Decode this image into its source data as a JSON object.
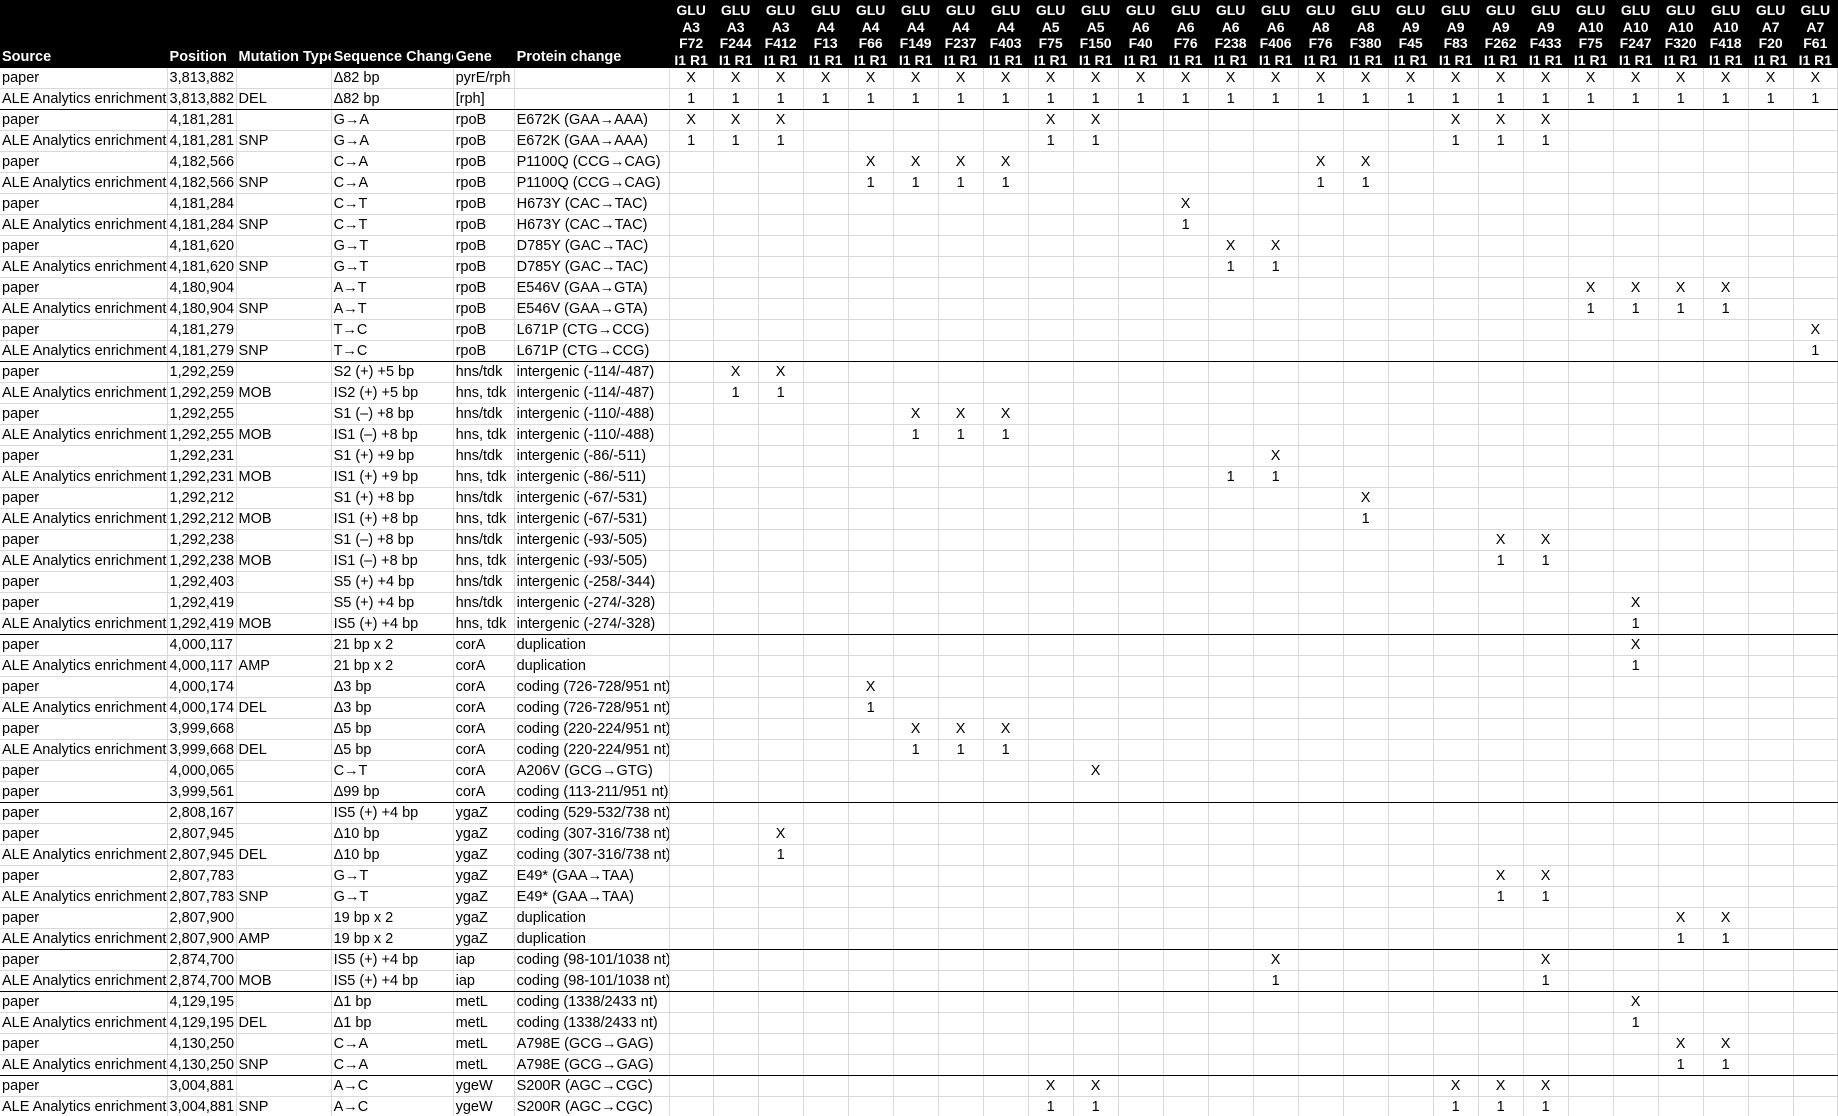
{
  "headers": [
    "Source",
    "Position",
    "Mutation Type",
    "Sequence Change",
    "Gene",
    "Protein change"
  ],
  "samples": [
    [
      "GLU",
      "A3",
      "F72",
      "I1 R1"
    ],
    [
      "GLU",
      "A3",
      "F244",
      "I1 R1"
    ],
    [
      "GLU",
      "A3",
      "F412",
      "I1 R1"
    ],
    [
      "GLU",
      "A4",
      "F13",
      "I1 R1"
    ],
    [
      "GLU",
      "A4",
      "F66",
      "I1 R1"
    ],
    [
      "GLU",
      "A4",
      "F149",
      "I1 R1"
    ],
    [
      "GLU",
      "A4",
      "F237",
      "I1 R1"
    ],
    [
      "GLU",
      "A4",
      "F403",
      "I1 R1"
    ],
    [
      "GLU",
      "A5",
      "F75",
      "I1 R1"
    ],
    [
      "GLU",
      "A5",
      "F150",
      "I1 R1"
    ],
    [
      "GLU",
      "A6",
      "F40",
      "I1 R1"
    ],
    [
      "GLU",
      "A6",
      "F76",
      "I1 R1"
    ],
    [
      "GLU",
      "A6",
      "F238",
      "I1 R1"
    ],
    [
      "GLU",
      "A6",
      "F406",
      "I1 R1"
    ],
    [
      "GLU",
      "A8",
      "F76",
      "I1 R1"
    ],
    [
      "GLU",
      "A8",
      "F380",
      "I1 R1"
    ],
    [
      "GLU",
      "A9",
      "F45",
      "I1 R1"
    ],
    [
      "GLU",
      "A9",
      "F83",
      "I1 R1"
    ],
    [
      "GLU",
      "A9",
      "F262",
      "I1 R1"
    ],
    [
      "GLU",
      "A9",
      "F433",
      "I1 R1"
    ],
    [
      "GLU",
      "A10",
      "F75",
      "I1 R1"
    ],
    [
      "GLU",
      "A10",
      "F247",
      "I1 R1"
    ],
    [
      "GLU",
      "A10",
      "F320",
      "I1 R1"
    ],
    [
      "GLU",
      "A10",
      "F418",
      "I1 R1"
    ],
    [
      "GLU",
      "A7",
      "F20",
      "I1 R1"
    ],
    [
      "GLU",
      "A7",
      "F61",
      "I1 R1"
    ]
  ],
  "rows": [
    {
      "src": "paper",
      "pos": "3,813,882",
      "type": "",
      "seq": "Δ82 bp",
      "gene": "pyrE/rph",
      "prot": "",
      "m": "XXXXXXXXXXXXXXXXXXXXXXXXXX"
    },
    {
      "src": "ALE Analytics enrichment",
      "pos": "3,813,882",
      "type": "DEL",
      "seq": "Δ82 bp",
      "gene": "[rph]",
      "prot": "",
      "m": "11111111111111111111111111",
      "sep": true
    },
    {
      "src": "paper",
      "pos": "4,181,281",
      "type": "",
      "seq": "G→A",
      "gene": "rpoB",
      "prot": "E672K (GAA→AAA)",
      "m": "XXX.....XX.......XXX......"
    },
    {
      "src": "ALE Analytics enrichment",
      "pos": "4,181,281",
      "type": "SNP",
      "seq": "G→A",
      "gene": "rpoB",
      "prot": "E672K (GAA→AAA)",
      "m": "111.....11.......111......"
    },
    {
      "src": "paper",
      "pos": "4,182,566",
      "type": "",
      "seq": "C→A",
      "gene": "rpoB",
      "prot": "P1100Q (CCG→CAG)",
      "m": "....XXXX......XX.........."
    },
    {
      "src": "ALE Analytics enrichment",
      "pos": "4,182,566",
      "type": "SNP",
      "seq": "C→A",
      "gene": "rpoB",
      "prot": "P1100Q (CCG→CAG)",
      "m": "....1111......11.........."
    },
    {
      "src": "paper",
      "pos": "4,181,284",
      "type": "",
      "seq": "C→T",
      "gene": "rpoB",
      "prot": "H673Y (CAC→TAC)",
      "m": "...........X.............."
    },
    {
      "src": "ALE Analytics enrichment",
      "pos": "4,181,284",
      "type": "SNP",
      "seq": "C→T",
      "gene": "rpoB",
      "prot": "H673Y (CAC→TAC)",
      "m": "...........1.............."
    },
    {
      "src": "paper",
      "pos": "4,181,620",
      "type": "",
      "seq": "G→T",
      "gene": "rpoB",
      "prot": "D785Y (GAC→TAC)",
      "m": "............XX............"
    },
    {
      "src": "ALE Analytics enrichment",
      "pos": "4,181,620",
      "type": "SNP",
      "seq": "G→T",
      "gene": "rpoB",
      "prot": "D785Y (GAC→TAC)",
      "m": "............11............"
    },
    {
      "src": "paper",
      "pos": "4,180,904",
      "type": "",
      "seq": "A→T",
      "gene": "rpoB",
      "prot": "E546V (GAA→GTA)",
      "m": "....................XXXX.."
    },
    {
      "src": "ALE Analytics enrichment",
      "pos": "4,180,904",
      "type": "SNP",
      "seq": "A→T",
      "gene": "rpoB",
      "prot": "E546V (GAA→GTA)",
      "m": "....................1111.."
    },
    {
      "src": "paper",
      "pos": "4,181,279",
      "type": "",
      "seq": "T→C",
      "gene": "rpoB",
      "prot": "L671P (CTG→CCG)",
      "m": ".........................X"
    },
    {
      "src": "ALE Analytics enrichment",
      "pos": "4,181,279",
      "type": "SNP",
      "seq": "T→C",
      "gene": "rpoB",
      "prot": "L671P (CTG→CCG)",
      "m": ".........................1",
      "sep": true
    },
    {
      "src": "paper",
      "pos": "1,292,259",
      "type": "",
      "seq": "S2 (+) +5 bp",
      "gene": "hns/tdk",
      "prot": "intergenic (-114/-487)",
      "m": ".XX......................."
    },
    {
      "src": "ALE Analytics enrichment",
      "pos": "1,292,259",
      "type": "MOB",
      "seq": "IS2 (+) +5 bp",
      "gene": "hns,  tdk",
      "prot": "intergenic (-114/-487)",
      "m": ".11......................."
    },
    {
      "src": "paper",
      "pos": "1,292,255",
      "type": "",
      "seq": "S1 (–) +8 bp",
      "gene": "hns/tdk",
      "prot": "intergenic (-110/-488)",
      "m": ".....XXX.................."
    },
    {
      "src": "ALE Analytics enrichment",
      "pos": "1,292,255",
      "type": "MOB",
      "seq": "IS1 (–) +8 bp",
      "gene": "hns,  tdk",
      "prot": "intergenic (-110/-488)",
      "m": ".....111.................."
    },
    {
      "src": "paper",
      "pos": "1,292,231",
      "type": "",
      "seq": "S1 (+) +9 bp",
      "gene": "hns/tdk",
      "prot": "intergenic (-86/-511)",
      "m": ".............X............"
    },
    {
      "src": "ALE Analytics enrichment",
      "pos": "1,292,231",
      "type": "MOB",
      "seq": "IS1 (+) +9 bp",
      "gene": "hns,  tdk",
      "prot": "intergenic (-86/-511)",
      "m": "............11............"
    },
    {
      "src": "paper",
      "pos": "1,292,212",
      "type": "",
      "seq": "S1 (+) +8 bp",
      "gene": "hns/tdk",
      "prot": "intergenic (-67/-531)",
      "m": "...............X.........."
    },
    {
      "src": "ALE Analytics enrichment",
      "pos": "1,292,212",
      "type": "MOB",
      "seq": "IS1 (+) +8 bp",
      "gene": "hns,  tdk",
      "prot": "intergenic (-67/-531)",
      "m": "...............1.........."
    },
    {
      "src": "paper",
      "pos": "1,292,238",
      "type": "",
      "seq": "S1 (–) +8 bp",
      "gene": "hns/tdk",
      "prot": "intergenic (-93/-505)",
      "m": "..................XX......"
    },
    {
      "src": "ALE Analytics enrichment",
      "pos": "1,292,238",
      "type": "MOB",
      "seq": "IS1 (–) +8 bp",
      "gene": "hns,  tdk",
      "prot": "intergenic (-93/-505)",
      "m": "..................11......"
    },
    {
      "src": "paper",
      "pos": "1,292,403",
      "type": "",
      "seq": "S5 (+) +4 bp",
      "gene": "hns/tdk",
      "prot": "intergenic (-258/-344)",
      "m": ".........................."
    },
    {
      "src": "paper",
      "pos": "1,292,419",
      "type": "",
      "seq": "S5 (+) +4 bp",
      "gene": "hns/tdk",
      "prot": "intergenic (-274/-328)",
      "m": ".....................X...."
    },
    {
      "src": "ALE Analytics enrichment",
      "pos": "1,292,419",
      "type": "MOB",
      "seq": "IS5 (+) +4 bp",
      "gene": "hns,  tdk",
      "prot": "intergenic (-274/-328)",
      "m": ".....................1....",
      "sep": true
    },
    {
      "src": "paper",
      "pos": "4,000,117",
      "type": "",
      "seq": "21 bp x 2",
      "gene": "corA",
      "prot": "duplication",
      "m": ".....................X...."
    },
    {
      "src": "ALE Analytics enrichment",
      "pos": "4,000,117",
      "type": "AMP",
      "seq": "21 bp x 2",
      "gene": "corA",
      "prot": "duplication",
      "m": ".....................1...."
    },
    {
      "src": "paper",
      "pos": "4,000,174",
      "type": "",
      "seq": "Δ3 bp",
      "gene": "corA",
      "prot": "coding (726-728/951 nt)",
      "m": "....X....................."
    },
    {
      "src": "ALE Analytics enrichment",
      "pos": "4,000,174",
      "type": "DEL",
      "seq": "Δ3 bp",
      "gene": "corA",
      "prot": "coding (726-728/951 nt)",
      "m": "....1....................."
    },
    {
      "src": "paper",
      "pos": "3,999,668",
      "type": "",
      "seq": "Δ5 bp",
      "gene": "corA",
      "prot": "coding (220-224/951 nt)",
      "m": ".....XXX.................."
    },
    {
      "src": "ALE Analytics enrichment",
      "pos": "3,999,668",
      "type": "DEL",
      "seq": "Δ5 bp",
      "gene": "corA",
      "prot": "coding (220-224/951 nt)",
      "m": ".....111.................."
    },
    {
      "src": "paper",
      "pos": "4,000,065",
      "type": "",
      "seq": "C→T",
      "gene": "corA",
      "prot": "A206V (GCG→GTG)",
      "m": ".........X................"
    },
    {
      "src": "paper",
      "pos": "3,999,561",
      "type": "",
      "seq": "Δ99 bp",
      "gene": "corA",
      "prot": "coding (113-211/951 nt)",
      "m": "..........................",
      "sep": true
    },
    {
      "src": "paper",
      "pos": "2,808,167",
      "type": "",
      "seq": "IS5 (+) +4 bp",
      "gene": "ygaZ",
      "prot": "coding (529-532/738 nt)",
      "m": ".........................."
    },
    {
      "src": "paper",
      "pos": "2,807,945",
      "type": "",
      "seq": "Δ10 bp",
      "gene": "ygaZ",
      "prot": "coding (307-316/738 nt)",
      "m": "..X......................."
    },
    {
      "src": "ALE Analytics enrichment",
      "pos": "2,807,945",
      "type": "DEL",
      "seq": "Δ10 bp",
      "gene": "ygaZ",
      "prot": "coding (307-316/738 nt)",
      "m": "..1......................."
    },
    {
      "src": "paper",
      "pos": "2,807,783",
      "type": "",
      "seq": "G→T",
      "gene": "ygaZ",
      "prot": "E49* (GAA→TAA)",
      "m": "..................XX......"
    },
    {
      "src": "ALE Analytics enrichment",
      "pos": "2,807,783",
      "type": "SNP",
      "seq": "G→T",
      "gene": "ygaZ",
      "prot": "E49* (GAA→TAA)",
      "m": "..................11......"
    },
    {
      "src": "paper",
      "pos": "2,807,900",
      "type": "",
      "seq": "19 bp x 2",
      "gene": "ygaZ",
      "prot": "duplication",
      "m": "......................XX.."
    },
    {
      "src": "ALE Analytics enrichment",
      "pos": "2,807,900",
      "type": "AMP",
      "seq": "19 bp x 2",
      "gene": "ygaZ",
      "prot": "duplication",
      "m": "......................11..",
      "sep": true
    },
    {
      "src": "paper",
      "pos": "2,874,700",
      "type": "",
      "seq": "IS5 (+) +4 bp",
      "gene": "iap",
      "prot": "coding (98-101/1038 nt)",
      "m": ".............X.....X......"
    },
    {
      "src": "ALE Analytics enrichment",
      "pos": "2,874,700",
      "type": "MOB",
      "seq": "IS5 (+) +4 bp",
      "gene": "iap",
      "prot": "coding (98-101/1038 nt)",
      "m": ".............1.....1......",
      "sep": true
    },
    {
      "src": "paper",
      "pos": "4,129,195",
      "type": "",
      "seq": "Δ1 bp",
      "gene": "metL",
      "prot": "coding (1338/2433 nt)",
      "m": ".....................X...."
    },
    {
      "src": "ALE Analytics enrichment",
      "pos": "4,129,195",
      "type": "DEL",
      "seq": "Δ1 bp",
      "gene": "metL",
      "prot": "coding (1338/2433 nt)",
      "m": ".....................1...."
    },
    {
      "src": "paper",
      "pos": "4,130,250",
      "type": "",
      "seq": "C→A",
      "gene": "metL",
      "prot": "A798E (GCG→GAG)",
      "m": "......................XX.."
    },
    {
      "src": "ALE Analytics enrichment",
      "pos": "4,130,250",
      "type": "SNP",
      "seq": "C→A",
      "gene": "metL",
      "prot": "A798E (GCG→GAG)",
      "m": "......................11..",
      "sep": true
    },
    {
      "src": "paper",
      "pos": "3,004,881",
      "type": "",
      "seq": "A→C",
      "gene": "ygeW",
      "prot": "S200R (AGC→CGC)",
      "m": "........XX.......XXX......"
    },
    {
      "src": "ALE Analytics enrichment",
      "pos": "3,004,881",
      "type": "SNP",
      "seq": "A→C",
      "gene": "ygeW",
      "prot": "S200R (AGC→CGC)",
      "m": "........11.......111......"
    }
  ]
}
